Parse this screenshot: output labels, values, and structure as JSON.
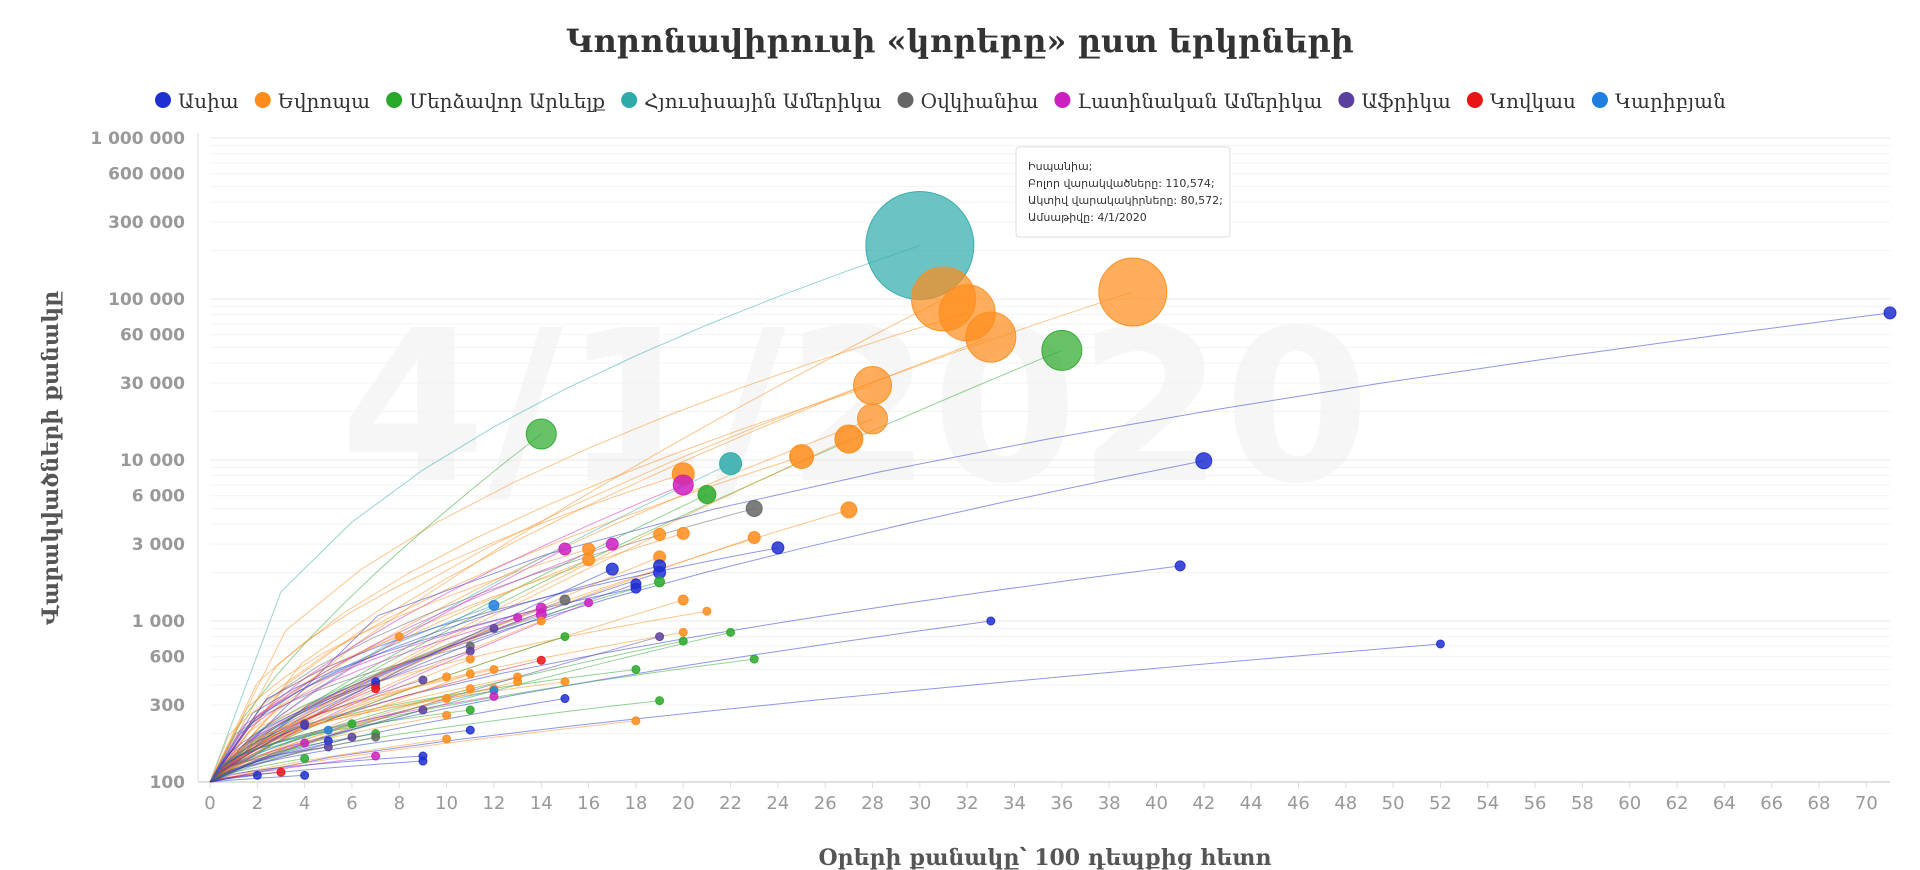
{
  "chart_data": {
    "type": "scatter",
    "title": "Կորոնավիրուսի «կորերը» ըստ երկրների",
    "xlabel": "Օրերի քանակը՝ 100 դեպքից հետո",
    "ylabel": "Վարակվածների քանակը",
    "date_watermark": "4/1/2020",
    "xlim": [
      0,
      71
    ],
    "ylim": [
      100,
      1000000
    ],
    "y_scale": "log",
    "legend_position": "top",
    "x_ticks": [
      "0",
      "2",
      "4",
      "6",
      "8",
      "10",
      "12",
      "14",
      "16",
      "18",
      "20",
      "22",
      "24",
      "26",
      "28",
      "30",
      "32",
      "34",
      "36",
      "38",
      "40",
      "42",
      "44",
      "46",
      "48",
      "50",
      "52",
      "54",
      "56",
      "58",
      "60",
      "62",
      "64",
      "66",
      "68",
      "70"
    ],
    "y_ticks": [
      {
        "value": 100,
        "label": "100"
      },
      {
        "value": 300,
        "label": "300"
      },
      {
        "value": 600,
        "label": "600"
      },
      {
        "value": 1000,
        "label": "1 000"
      },
      {
        "value": 3000,
        "label": "3 000"
      },
      {
        "value": 6000,
        "label": "6 000"
      },
      {
        "value": 10000,
        "label": "10 000"
      },
      {
        "value": 30000,
        "label": "30 000"
      },
      {
        "value": 60000,
        "label": "60 000"
      },
      {
        "value": 100000,
        "label": "100 000"
      },
      {
        "value": 300000,
        "label": "300 000"
      },
      {
        "value": 600000,
        "label": "600 000"
      },
      {
        "value": 1000000,
        "label": "1 000 000"
      }
    ],
    "legend": [
      {
        "name": "Ասիա",
        "color": "#1f2fd1"
      },
      {
        "name": "Եվրոպա",
        "color": "#ff8c1a"
      },
      {
        "name": "Մերձավոր Արևելք",
        "color": "#28a828"
      },
      {
        "name": "Հյուսիսային Ամերիկա",
        "color": "#2eaaaa"
      },
      {
        "name": "Օվկիանիա",
        "color": "#666666"
      },
      {
        "name": "Լատինական Ամերիկա",
        "color": "#cc1fbf"
      },
      {
        "name": "Աֆրիկա",
        "color": "#5b3f9e"
      },
      {
        "name": "Կովկաս",
        "color": "#e81515"
      },
      {
        "name": "Կարիբյան",
        "color": "#1e7fe0"
      }
    ],
    "points": [
      {
        "region": 3,
        "x": 30,
        "y": 215000,
        "r": 54
      },
      {
        "region": 1,
        "x": 39,
        "y": 110574,
        "r": 34
      },
      {
        "region": 1,
        "x": 31,
        "y": 100000,
        "r": 32
      },
      {
        "region": 1,
        "x": 32,
        "y": 82000,
        "r": 28
      },
      {
        "region": 1,
        "x": 33,
        "y": 58000,
        "r": 25
      },
      {
        "region": 2,
        "x": 36,
        "y": 48000,
        "r": 20
      },
      {
        "region": 1,
        "x": 28,
        "y": 29000,
        "r": 19
      },
      {
        "region": 1,
        "x": 28,
        "y": 18000,
        "r": 15
      },
      {
        "region": 1,
        "x": 27,
        "y": 13500,
        "r": 14
      },
      {
        "region": 1,
        "x": 25,
        "y": 10500,
        "r": 12
      },
      {
        "region": 2,
        "x": 14,
        "y": 14500,
        "r": 15
      },
      {
        "region": 0,
        "x": 71,
        "y": 82000,
        "r": 6
      },
      {
        "region": 0,
        "x": 42,
        "y": 9900,
        "r": 8
      },
      {
        "region": 3,
        "x": 22,
        "y": 9500,
        "r": 11
      },
      {
        "region": 1,
        "x": 20,
        "y": 8200,
        "r": 11
      },
      {
        "region": 5,
        "x": 20,
        "y": 7000,
        "r": 10
      },
      {
        "region": 2,
        "x": 21,
        "y": 6100,
        "r": 9
      },
      {
        "region": 4,
        "x": 23,
        "y": 5000,
        "r": 8
      },
      {
        "region": 1,
        "x": 27,
        "y": 4900,
        "r": 8
      },
      {
        "region": 1,
        "x": 19,
        "y": 3450,
        "r": 6
      },
      {
        "region": 1,
        "x": 20,
        "y": 3500,
        "r": 6
      },
      {
        "region": 1,
        "x": 23,
        "y": 3300,
        "r": 6
      },
      {
        "region": 0,
        "x": 24,
        "y": 2850,
        "r": 6
      },
      {
        "region": 5,
        "x": 17,
        "y": 3000,
        "r": 6
      },
      {
        "region": 5,
        "x": 15,
        "y": 2800,
        "r": 6
      },
      {
        "region": 1,
        "x": 16,
        "y": 2800,
        "r": 6
      },
      {
        "region": 1,
        "x": 16,
        "y": 2400,
        "r": 6
      },
      {
        "region": 1,
        "x": 19,
        "y": 2500,
        "r": 6
      },
      {
        "region": 0,
        "x": 19,
        "y": 2200,
        "r": 6
      },
      {
        "region": 0,
        "x": 19,
        "y": 2000,
        "r": 6
      },
      {
        "region": 0,
        "x": 17,
        "y": 2100,
        "r": 6
      },
      {
        "region": 0,
        "x": 41,
        "y": 2200,
        "r": 5
      },
      {
        "region": 0,
        "x": 18,
        "y": 1700,
        "r": 5
      },
      {
        "region": 0,
        "x": 18,
        "y": 1600,
        "r": 5
      },
      {
        "region": 2,
        "x": 19,
        "y": 1750,
        "r": 5
      },
      {
        "region": 1,
        "x": 20,
        "y": 1350,
        "r": 5
      },
      {
        "region": 1,
        "x": 21,
        "y": 1150,
        "r": 4
      },
      {
        "region": 0,
        "x": 33,
        "y": 1000,
        "r": 4
      },
      {
        "region": 2,
        "x": 22,
        "y": 850,
        "r": 4
      },
      {
        "region": 1,
        "x": 20,
        "y": 850,
        "r": 4
      },
      {
        "region": 2,
        "x": 20,
        "y": 750,
        "r": 4
      },
      {
        "region": 6,
        "x": 19,
        "y": 800,
        "r": 4
      },
      {
        "region": 2,
        "x": 23,
        "y": 580,
        "r": 4
      },
      {
        "region": 0,
        "x": 52,
        "y": 720,
        "r": 4
      },
      {
        "region": 2,
        "x": 18,
        "y": 500,
        "r": 4
      },
      {
        "region": 2,
        "x": 19,
        "y": 320,
        "r": 4
      },
      {
        "region": 1,
        "x": 18,
        "y": 240,
        "r": 4
      },
      {
        "region": 5,
        "x": 14,
        "y": 1200,
        "r": 5
      },
      {
        "region": 5,
        "x": 14,
        "y": 1100,
        "r": 5
      },
      {
        "region": 1,
        "x": 14,
        "y": 1000,
        "r": 4
      },
      {
        "region": 5,
        "x": 13,
        "y": 1050,
        "r": 4
      },
      {
        "region": 4,
        "x": 15,
        "y": 1350,
        "r": 5
      },
      {
        "region": 5,
        "x": 16,
        "y": 1300,
        "r": 4
      },
      {
        "region": 8,
        "x": 12,
        "y": 1250,
        "r": 5
      },
      {
        "region": 6,
        "x": 12,
        "y": 900,
        "r": 4
      },
      {
        "region": 4,
        "x": 11,
        "y": 700,
        "r": 4
      },
      {
        "region": 6,
        "x": 11,
        "y": 650,
        "r": 4
      },
      {
        "region": 2,
        "x": 15,
        "y": 800,
        "r": 4
      },
      {
        "region": 1,
        "x": 8,
        "y": 800,
        "r": 4
      },
      {
        "region": 7,
        "x": 14,
        "y": 570,
        "r": 4
      },
      {
        "region": 1,
        "x": 11,
        "y": 580,
        "r": 4
      },
      {
        "region": 1,
        "x": 12,
        "y": 500,
        "r": 4
      },
      {
        "region": 1,
        "x": 10,
        "y": 450,
        "r": 4
      },
      {
        "region": 1,
        "x": 11,
        "y": 470,
        "r": 4
      },
      {
        "region": 1,
        "x": 13,
        "y": 450,
        "r": 4
      },
      {
        "region": 1,
        "x": 13,
        "y": 420,
        "r": 4
      },
      {
        "region": 1,
        "x": 15,
        "y": 420,
        "r": 4
      },
      {
        "region": 6,
        "x": 9,
        "y": 430,
        "r": 4
      },
      {
        "region": 1,
        "x": 11,
        "y": 380,
        "r": 4
      },
      {
        "region": 1,
        "x": 12,
        "y": 380,
        "r": 4
      },
      {
        "region": 8,
        "x": 12,
        "y": 370,
        "r": 4
      },
      {
        "region": 1,
        "x": 10,
        "y": 330,
        "r": 4
      },
      {
        "region": 5,
        "x": 12,
        "y": 340,
        "r": 4
      },
      {
        "region": 0,
        "x": 15,
        "y": 330,
        "r": 4
      },
      {
        "region": 7,
        "x": 7,
        "y": 400,
        "r": 4
      },
      {
        "region": 0,
        "x": 7,
        "y": 420,
        "r": 4
      },
      {
        "region": 7,
        "x": 7,
        "y": 380,
        "r": 4
      },
      {
        "region": 2,
        "x": 11,
        "y": 280,
        "r": 4
      },
      {
        "region": 1,
        "x": 10,
        "y": 260,
        "r": 4
      },
      {
        "region": 6,
        "x": 9,
        "y": 280,
        "r": 4
      },
      {
        "region": 2,
        "x": 6,
        "y": 230,
        "r": 4
      },
      {
        "region": 0,
        "x": 4,
        "y": 225,
        "r": 4
      },
      {
        "region": 6,
        "x": 4,
        "y": 230,
        "r": 4
      },
      {
        "region": 2,
        "x": 7,
        "y": 200,
        "r": 4
      },
      {
        "region": 4,
        "x": 7,
        "y": 190,
        "r": 4
      },
      {
        "region": 6,
        "x": 6,
        "y": 190,
        "r": 4
      },
      {
        "region": 5,
        "x": 4,
        "y": 175,
        "r": 4
      },
      {
        "region": 0,
        "x": 5,
        "y": 180,
        "r": 4
      },
      {
        "region": 6,
        "x": 5,
        "y": 165,
        "r": 4
      },
      {
        "region": 0,
        "x": 11,
        "y": 210,
        "r": 4
      },
      {
        "region": 1,
        "x": 10,
        "y": 185,
        "r": 4
      },
      {
        "region": 8,
        "x": 5,
        "y": 210,
        "r": 4
      },
      {
        "region": 2,
        "x": 4,
        "y": 140,
        "r": 4
      },
      {
        "region": 5,
        "x": 7,
        "y": 145,
        "r": 4
      },
      {
        "region": 0,
        "x": 9,
        "y": 145,
        "r": 4
      },
      {
        "region": 0,
        "x": 9,
        "y": 135,
        "r": 4
      },
      {
        "region": 0,
        "x": 4,
        "y": 110,
        "r": 4
      },
      {
        "region": 7,
        "x": 3,
        "y": 115,
        "r": 4
      },
      {
        "region": 0,
        "x": 2,
        "y": 110,
        "r": 4
      }
    ],
    "tooltip": {
      "country": "Իսպանիա;",
      "line_total": "Բոլոր վարակվածները: 110,574;",
      "line_active": "Ակտիվ վարակակիրները: 80,572;",
      "line_date": "Ամսաթիվը: 4/1/2020"
    }
  }
}
